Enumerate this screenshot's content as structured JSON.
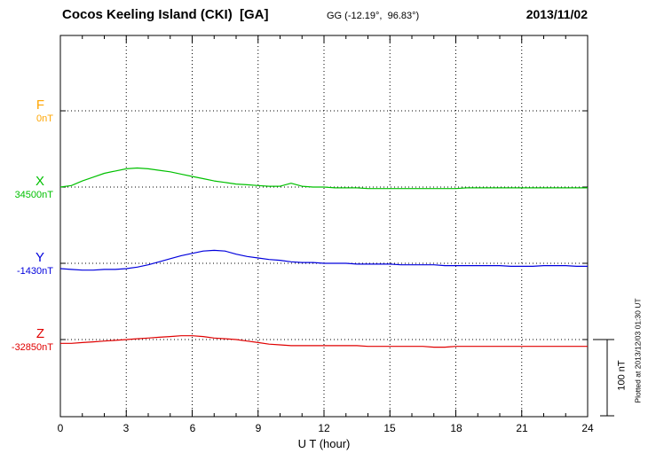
{
  "header": {
    "station_title": "Cocos Keeling Island (CKI)  [GA]",
    "coords": "GG (-12.19°,  96.83°)",
    "date": "2013/11/02"
  },
  "axis": {
    "xlabel": "U T (hour)",
    "ticks": [
      "0",
      "3",
      "6",
      "9",
      "12",
      "15",
      "18",
      "21",
      "24"
    ]
  },
  "scale_bar": {
    "label": "100 nT",
    "span_nT": 100
  },
  "plotted_note": "Plotted at 2013/12/03 01:30 UT",
  "colors": {
    "F": "#FFA500",
    "X": "#00C000",
    "Y": "#0000DD",
    "Z": "#E00000",
    "frame": "#000000",
    "grid": "#000000"
  },
  "chart_data": {
    "type": "line",
    "title": "Magnetogram: Cocos Keeling Island (CKI) [GA] 2013/11/02",
    "xlabel": "U T (hour)",
    "xlim": [
      0,
      24
    ],
    "x_tick_step_hours": 3,
    "x_start_hour": 0,
    "x_step_hours": 0.5,
    "grid": "dotted",
    "scale_division_nT": 100,
    "values_unit": "nT offset from component baseline",
    "series": [
      {
        "name": "F",
        "baseline_label": "0nT",
        "baseline_nT": 0,
        "color": "#FFA500",
        "values": []
      },
      {
        "name": "X",
        "baseline_label": "34500nT",
        "baseline_nT": 34500,
        "color": "#00C000",
        "values": [
          0,
          2,
          8,
          13,
          18,
          21,
          24,
          25,
          24,
          22,
          20,
          17,
          14,
          11,
          8,
          6,
          4,
          3,
          2,
          1,
          1,
          5,
          1,
          0,
          0,
          -1,
          -1,
          -1,
          -2,
          -2,
          -2,
          -2,
          -2,
          -2,
          -2,
          -2,
          -2,
          -1,
          -1,
          -1,
          -1,
          -1,
          -1,
          -1,
          -1,
          -1,
          -1,
          -1,
          -1
        ]
      },
      {
        "name": "Y",
        "baseline_label": "-1430nT",
        "baseline_nT": -1430,
        "color": "#0000DD",
        "values": [
          -7,
          -8,
          -9,
          -9,
          -8,
          -8,
          -7,
          -5,
          -2,
          2,
          6,
          10,
          13,
          16,
          17,
          16,
          12,
          9,
          7,
          5,
          4,
          2,
          1,
          1,
          0,
          0,
          0,
          -1,
          -1,
          -1,
          -1,
          -2,
          -2,
          -2,
          -2,
          -3,
          -3,
          -3,
          -3,
          -3,
          -3,
          -4,
          -4,
          -4,
          -3,
          -3,
          -3,
          -4,
          -4
        ]
      },
      {
        "name": "Z",
        "baseline_label": "-32850nT",
        "baseline_nT": -32850,
        "color": "#E00000",
        "values": [
          -5,
          -5,
          -4,
          -3,
          -2,
          -1,
          0,
          1,
          2,
          3,
          4,
          5,
          5,
          4,
          2,
          1,
          0,
          -2,
          -4,
          -6,
          -7,
          -8,
          -8,
          -8,
          -8,
          -8,
          -8,
          -8,
          -9,
          -9,
          -9,
          -9,
          -9,
          -9,
          -10,
          -10,
          -9,
          -9,
          -9,
          -9,
          -9,
          -9,
          -9,
          -9,
          -9,
          -9,
          -9,
          -9,
          -9
        ]
      }
    ]
  }
}
